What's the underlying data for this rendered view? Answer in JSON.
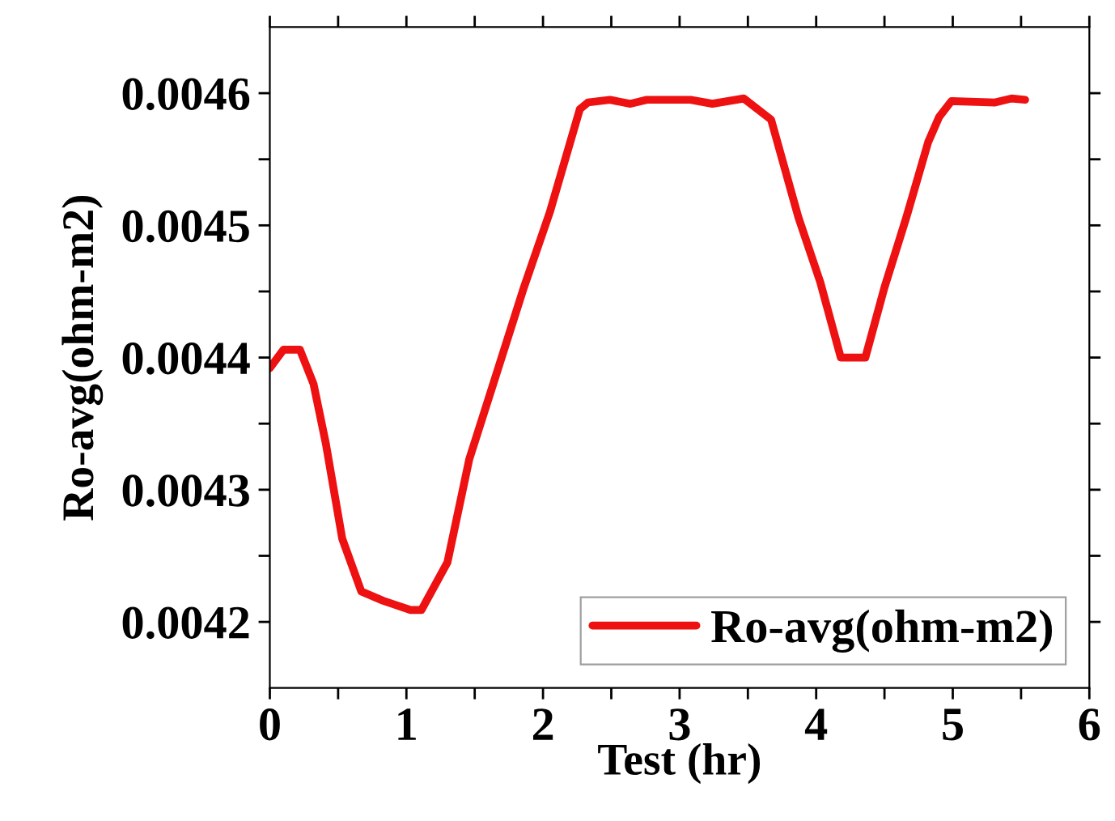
{
  "chart_data": {
    "type": "line",
    "xlabel": "Test (hr)",
    "ylabel": "Ro-avg(ohm-m2)",
    "xlim": [
      0,
      6
    ],
    "ylim": [
      0.00415,
      0.00465
    ],
    "xticks": [
      0,
      {
        "value": 0.5,
        "label": null
      },
      1,
      {
        "value": 1.5,
        "label": null
      },
      2,
      {
        "value": 2.5,
        "label": null
      },
      3,
      {
        "value": 3.5,
        "label": null
      },
      4,
      {
        "value": 4.5,
        "label": null
      },
      5,
      {
        "value": 5.5,
        "label": null
      },
      6
    ],
    "yticks": [
      {
        "value": 0.0042,
        "label": "0.0042"
      },
      {
        "value": 0.00425,
        "label": null
      },
      {
        "value": 0.0043,
        "label": "0.0043"
      },
      {
        "value": 0.00435,
        "label": null
      },
      {
        "value": 0.0044,
        "label": "0.0044"
      },
      {
        "value": 0.00445,
        "label": null
      },
      {
        "value": 0.0045,
        "label": "0.0045"
      },
      {
        "value": 0.00455,
        "label": null
      },
      {
        "value": 0.0046,
        "label": "0.0046"
      }
    ],
    "grid": false,
    "legend": "bottom right",
    "marker": "none",
    "line_style": "solid",
    "series": [
      {
        "name": "Ro-avg(ohm-m2)",
        "color": "#ee1111",
        "x": [
          0,
          0.1,
          0.22,
          0.32,
          0.41,
          0.53,
          0.67,
          0.83,
          1.03,
          1.11,
          1.3,
          1.46,
          1.66,
          1.86,
          2.05,
          2.27,
          2.33,
          2.49,
          2.64,
          2.76,
          3.08,
          3.24,
          3.47,
          3.67,
          3.87,
          4.03,
          4.18,
          4.36,
          4.5,
          4.66,
          4.82,
          4.9,
          4.99,
          5.31,
          5.43,
          5.53
        ],
        "values": [
          0.004392,
          0.004406,
          0.004406,
          0.00438,
          0.004335,
          0.004263,
          0.004223,
          0.004216,
          0.004209,
          0.004209,
          0.004245,
          0.004323,
          0.004388,
          0.004453,
          0.00451,
          0.004588,
          0.004593,
          0.004595,
          0.004592,
          0.004595,
          0.004595,
          0.004592,
          0.004596,
          0.00458,
          0.004506,
          0.004457,
          0.0044,
          0.0044,
          0.004453,
          0.004506,
          0.004563,
          0.004582,
          0.004594,
          0.004593,
          0.004596,
          0.004595
        ]
      }
    ]
  }
}
